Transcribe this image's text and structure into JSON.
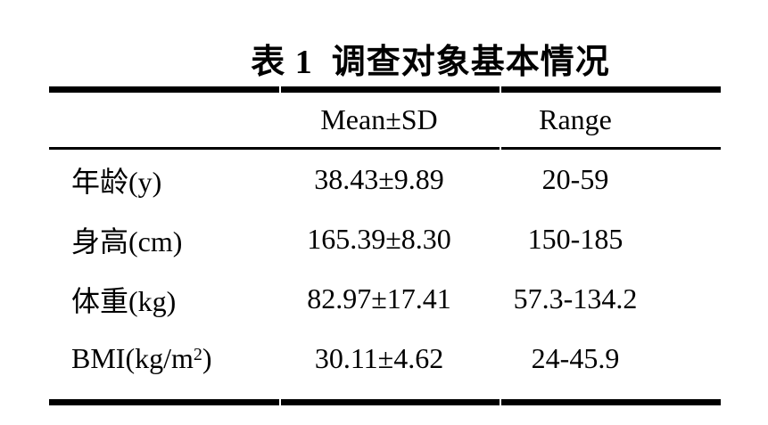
{
  "title": "表 1  调查对象基本情况",
  "colors": {
    "text": "#000000",
    "background": "#ffffff",
    "rule": "#000000"
  },
  "table": {
    "header": {
      "label": "",
      "mean_sd": "Mean±SD",
      "range": "Range"
    },
    "rows": [
      {
        "label": "年龄(y)",
        "label_sup": "",
        "label_end": "",
        "mean_sd": "38.43±9.89",
        "range": "20-59"
      },
      {
        "label": "身高(cm)",
        "label_sup": "",
        "label_end": "",
        "mean_sd": "165.39±8.30",
        "range": "150-185"
      },
      {
        "label": "体重(kg)",
        "label_sup": "",
        "label_end": "",
        "mean_sd": "82.97±17.41",
        "range": "57.3-134.2"
      },
      {
        "label": "BMI(kg/m",
        "label_sup": "2",
        "label_end": ")",
        "mean_sd": "30.11±4.62",
        "range": "24-45.9"
      }
    ]
  }
}
